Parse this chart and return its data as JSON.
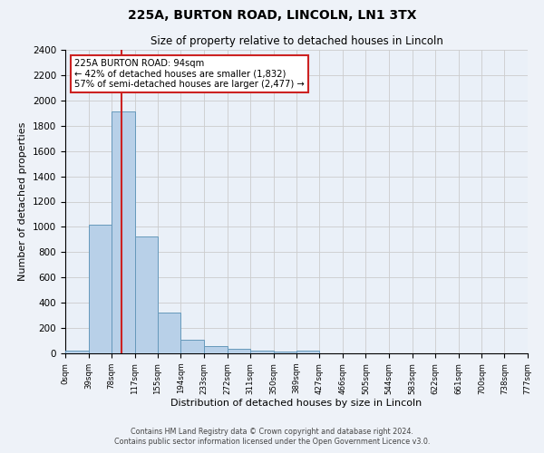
{
  "title1": "225A, BURTON ROAD, LINCOLN, LN1 3TX",
  "title2": "Size of property relative to detached houses in Lincoln",
  "xlabel": "Distribution of detached houses by size in Lincoln",
  "ylabel": "Number of detached properties",
  "bin_edges": [
    0,
    39,
    78,
    117,
    155,
    194,
    233,
    272,
    311,
    350,
    389,
    427,
    466,
    505,
    544,
    583,
    622,
    661,
    700,
    738,
    777
  ],
  "bin_labels": [
    "0sqm",
    "39sqm",
    "78sqm",
    "117sqm",
    "155sqm",
    "194sqm",
    "233sqm",
    "272sqm",
    "311sqm",
    "350sqm",
    "389sqm",
    "427sqm",
    "466sqm",
    "505sqm",
    "544sqm",
    "583sqm",
    "622sqm",
    "661sqm",
    "700sqm",
    "738sqm",
    "777sqm"
  ],
  "counts": [
    20,
    1020,
    1910,
    925,
    320,
    105,
    55,
    35,
    20,
    15,
    20,
    0,
    0,
    0,
    0,
    0,
    0,
    0,
    0,
    0
  ],
  "bar_color": "#b8d0e8",
  "bar_edgecolor": "#6699bb",
  "vline_x": 94,
  "vline_color": "#cc2222",
  "annotation_title": "225A BURTON ROAD: 94sqm",
  "annotation_line1": "← 42% of detached houses are smaller (1,832)",
  "annotation_line2": "57% of semi-detached houses are larger (2,477) →",
  "annotation_box_color": "white",
  "annotation_box_edgecolor": "#cc2222",
  "ylim": [
    0,
    2400
  ],
  "yticks": [
    0,
    200,
    400,
    600,
    800,
    1000,
    1200,
    1400,
    1600,
    1800,
    2000,
    2200,
    2400
  ],
  "footer1": "Contains HM Land Registry data © Crown copyright and database right 2024.",
  "footer2": "Contains public sector information licensed under the Open Government Licence v3.0.",
  "background_color": "#eef2f8",
  "grid_color": "#cccccc",
  "plot_bg_color": "#eaf0f8"
}
